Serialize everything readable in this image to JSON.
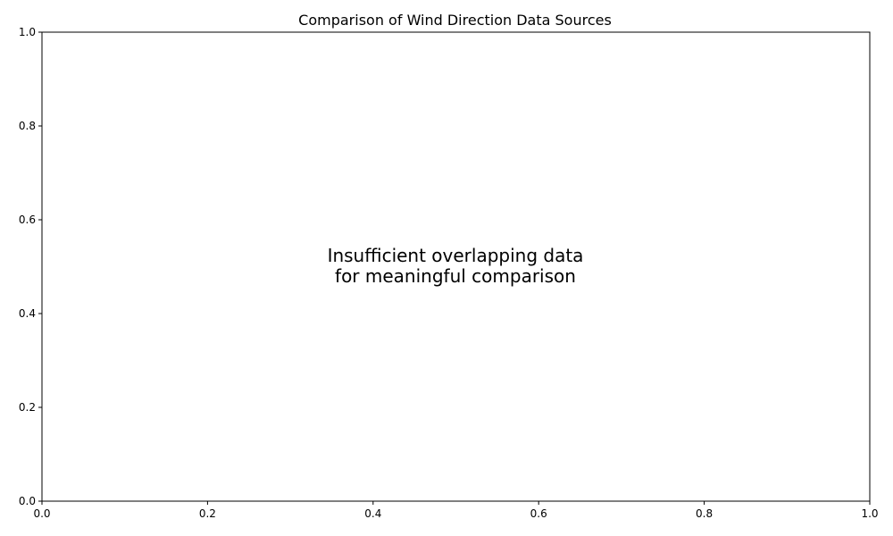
{
  "chart_data": {
    "type": "scatter",
    "title": "Comparison of Wind Direction Data Sources",
    "xlabel": "",
    "ylabel": "",
    "xlim": [
      0.0,
      1.0
    ],
    "ylim": [
      0.0,
      1.0
    ],
    "x_ticks": [
      "0.0",
      "0.2",
      "0.4",
      "0.6",
      "0.8",
      "1.0"
    ],
    "y_ticks": [
      "0.0",
      "0.2",
      "0.4",
      "0.6",
      "0.8",
      "1.0"
    ],
    "series": [],
    "grid": false,
    "annotation": {
      "lines": [
        "Insufficient overlapping data",
        "for meaningful comparison"
      ]
    }
  }
}
